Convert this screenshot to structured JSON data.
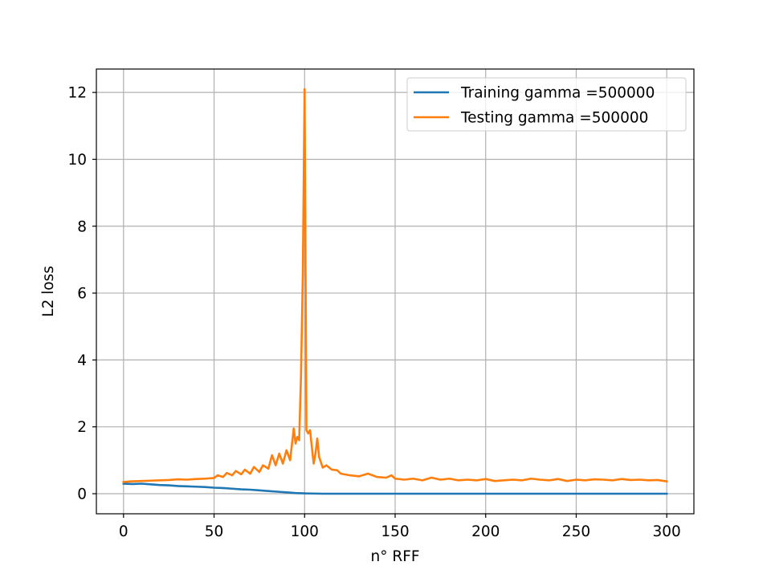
{
  "chart_data": {
    "type": "line",
    "title": "",
    "xlabel": "n° RFF",
    "ylabel": "L2 loss",
    "xlim": [
      -15,
      315
    ],
    "ylim": [
      -0.6,
      12.7
    ],
    "xticks": [
      0,
      50,
      100,
      150,
      200,
      250,
      300
    ],
    "yticks": [
      0,
      2,
      4,
      6,
      8,
      10,
      12
    ],
    "grid": true,
    "legend_position": "upper right",
    "series": [
      {
        "name": "Training gamma =500000",
        "color": "#1f77b4",
        "x": [
          0,
          5,
          10,
          15,
          20,
          25,
          30,
          35,
          40,
          45,
          50,
          55,
          60,
          65,
          70,
          75,
          80,
          85,
          90,
          95,
          100,
          110,
          120,
          150,
          200,
          250,
          300
        ],
        "y": [
          0.3,
          0.29,
          0.3,
          0.28,
          0.26,
          0.25,
          0.23,
          0.22,
          0.21,
          0.2,
          0.18,
          0.17,
          0.15,
          0.13,
          0.12,
          0.1,
          0.08,
          0.06,
          0.04,
          0.02,
          0.01,
          0.0,
          0.0,
          0.0,
          0.0,
          0.0,
          0.0
        ]
      },
      {
        "name": "Testing gamma =500000",
        "color": "#ff7f0e",
        "x": [
          0,
          5,
          10,
          15,
          20,
          25,
          30,
          35,
          40,
          45,
          50,
          52,
          55,
          57,
          60,
          62,
          65,
          67,
          70,
          72,
          75,
          77,
          80,
          82,
          84,
          86,
          88,
          90,
          92,
          94,
          95,
          96,
          97,
          98,
          99,
          100,
          101,
          102,
          103,
          104,
          105,
          106,
          107,
          108,
          110,
          112,
          115,
          118,
          120,
          125,
          130,
          135,
          140,
          145,
          148,
          150,
          155,
          160,
          165,
          170,
          175,
          180,
          185,
          190,
          195,
          200,
          205,
          210,
          215,
          220,
          225,
          230,
          235,
          240,
          245,
          250,
          255,
          260,
          265,
          270,
          275,
          280,
          285,
          290,
          295,
          300
        ],
        "y": [
          0.35,
          0.37,
          0.38,
          0.39,
          0.4,
          0.41,
          0.43,
          0.42,
          0.44,
          0.45,
          0.47,
          0.55,
          0.5,
          0.62,
          0.55,
          0.68,
          0.58,
          0.72,
          0.6,
          0.8,
          0.65,
          0.85,
          0.75,
          1.15,
          0.85,
          1.2,
          0.9,
          1.3,
          1.0,
          1.95,
          1.5,
          1.7,
          1.6,
          3.5,
          6.5,
          12.1,
          1.9,
          1.8,
          1.9,
          1.4,
          0.9,
          1.2,
          1.65,
          1.1,
          0.78,
          0.85,
          0.72,
          0.7,
          0.6,
          0.55,
          0.52,
          0.6,
          0.5,
          0.48,
          0.55,
          0.45,
          0.42,
          0.45,
          0.4,
          0.48,
          0.42,
          0.45,
          0.4,
          0.42,
          0.4,
          0.44,
          0.38,
          0.4,
          0.42,
          0.4,
          0.45,
          0.42,
          0.4,
          0.44,
          0.38,
          0.42,
          0.4,
          0.43,
          0.42,
          0.4,
          0.44,
          0.41,
          0.42,
          0.4,
          0.41,
          0.37
        ]
      }
    ]
  }
}
